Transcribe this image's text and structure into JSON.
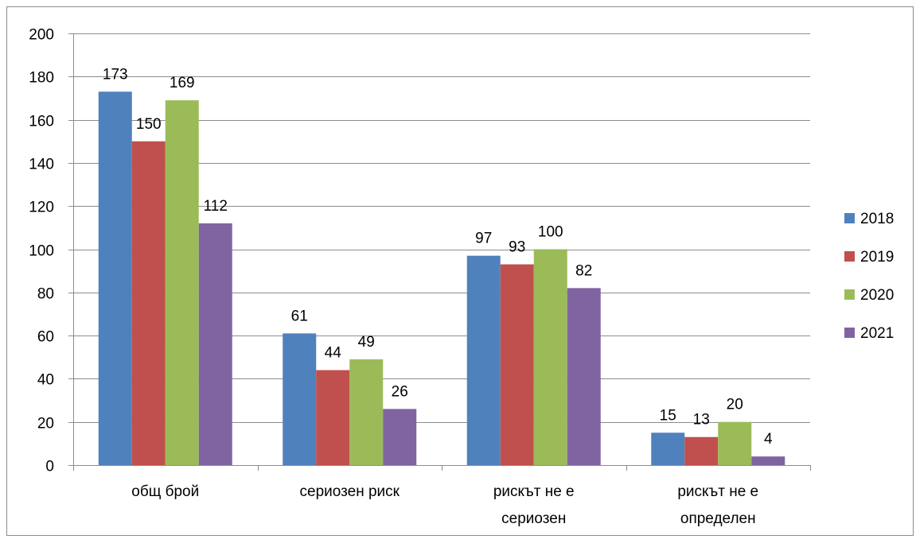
{
  "chart_data": {
    "type": "bar",
    "title": "",
    "xlabel": "",
    "ylabel": "",
    "categories": [
      [
        "общ брой"
      ],
      [
        "сериозен риск"
      ],
      [
        "рискът не е",
        "сериозен"
      ],
      [
        "рискът не е",
        "определен"
      ]
    ],
    "series": [
      {
        "name": "2018",
        "color": "#4F81BD",
        "values": [
          173,
          61,
          97,
          15
        ]
      },
      {
        "name": "2019",
        "color": "#C0504D",
        "values": [
          150,
          44,
          93,
          13
        ]
      },
      {
        "name": "2020",
        "color": "#9BBB59",
        "values": [
          169,
          49,
          100,
          20
        ]
      },
      {
        "name": "2021",
        "color": "#8064A2",
        "values": [
          112,
          26,
          82,
          4
        ]
      }
    ],
    "ylim": [
      0,
      200
    ],
    "yticks": [
      "0",
      "20",
      "40",
      "60",
      "80",
      "100",
      "120",
      "140",
      "160",
      "180",
      "200"
    ],
    "grid": true,
    "legend": "right",
    "data_labels": true
  }
}
